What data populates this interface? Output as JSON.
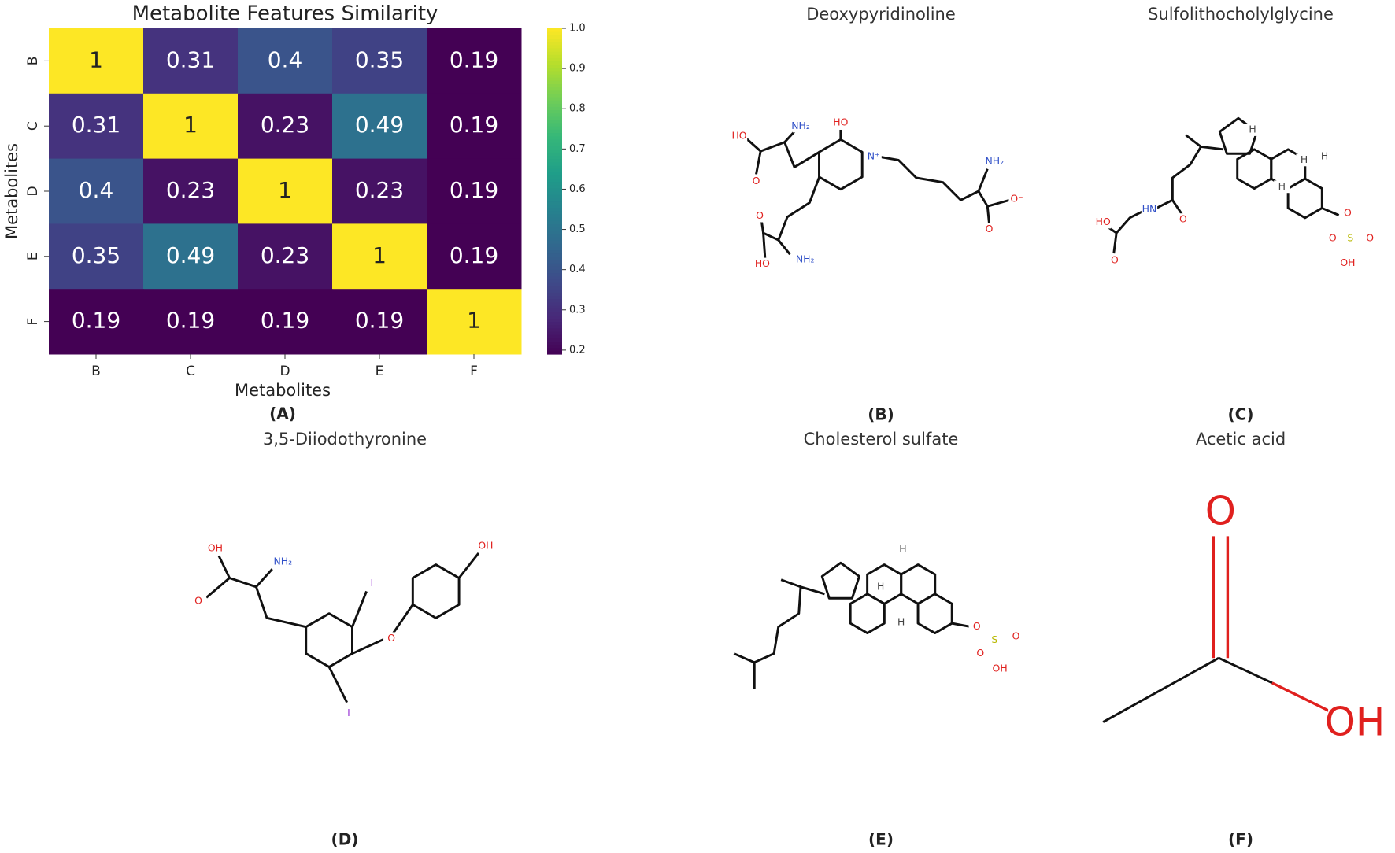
{
  "chart_data": {
    "type": "heatmap",
    "title": "Metabolite Features Similarity",
    "xlabel": "Metabolites",
    "ylabel": "Metabolites",
    "panel_label": "(A)",
    "x": [
      "B",
      "C",
      "D",
      "E",
      "F"
    ],
    "y": [
      "B",
      "C",
      "D",
      "E",
      "F"
    ],
    "values": [
      [
        1,
        0.31,
        0.4,
        0.35,
        0.19
      ],
      [
        0.31,
        1,
        0.23,
        0.49,
        0.19
      ],
      [
        0.4,
        0.23,
        1,
        0.23,
        0.19
      ],
      [
        0.35,
        0.49,
        0.23,
        1,
        0.19
      ],
      [
        0.19,
        0.19,
        0.19,
        0.19,
        1
      ]
    ],
    "colormap": "viridis",
    "clim": [
      0.19,
      1
    ],
    "cticks": [
      0.2,
      0.3,
      0.4,
      0.5,
      0.6,
      0.7,
      0.8,
      0.9,
      {
        "value": 1,
        "label": "1.0"
      }
    ]
  },
  "panels": [
    {
      "title": "Deoxypyridinoline",
      "label": "(B)",
      "atoms": [
        "HO",
        "NH₂",
        "HO",
        "N⁺",
        "NH₂",
        "O⁻",
        "O",
        "O",
        "HO",
        "NH₂",
        "O"
      ]
    },
    {
      "title": "Sulfolithocholylglycine",
      "label": "(C)",
      "atoms": [
        "HO",
        "O",
        "HN",
        "O",
        "H",
        "H",
        "H",
        "H",
        "O",
        "S",
        "O",
        "O",
        "OH"
      ]
    },
    {
      "title": "3,5-Diiodothyronine",
      "label": "(D)",
      "atoms": [
        "OH",
        "O",
        "NH₂",
        "I",
        "I",
        "O",
        "OH"
      ]
    },
    {
      "title": "Cholesterol sulfate",
      "label": "(E)",
      "atoms": [
        "H",
        "H",
        "H",
        "O",
        "S",
        "O",
        "O",
        "OH"
      ]
    },
    {
      "title": "Acetic acid",
      "label": "(F)",
      "atoms": [
        "O",
        "OH"
      ]
    }
  ]
}
